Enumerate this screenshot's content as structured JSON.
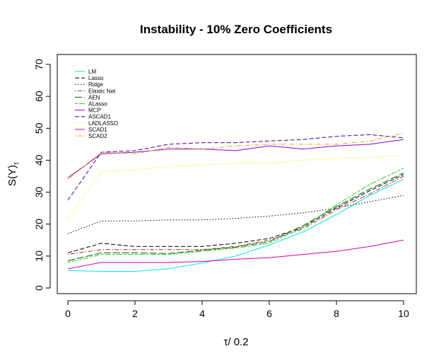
{
  "chart_data": {
    "type": "line",
    "title": "Instability - 10% Zero Coefficients",
    "xlabel": "τ/ 0.2",
    "ylabel_main": "S(Y)",
    "ylabel_sub": "τ",
    "xlim": [
      0,
      10
    ],
    "ylim": [
      0,
      70
    ],
    "xticks": [
      0,
      2,
      4,
      6,
      8,
      10
    ],
    "yticks": [
      0,
      10,
      20,
      30,
      40,
      50,
      60,
      70
    ],
    "legend_position": "top-left",
    "x": [
      0,
      1,
      2,
      3,
      4,
      5,
      6,
      7,
      8,
      9,
      10
    ],
    "series": [
      {
        "name": "LM",
        "color": "#00e5ee",
        "dash": "solid",
        "values": [
          5.5,
          5.2,
          5.2,
          6.0,
          7.8,
          10.0,
          13.5,
          17.5,
          23.0,
          29.0,
          34.0
        ]
      },
      {
        "name": "Lasso",
        "color": "#000000",
        "dash": "dashed",
        "values": [
          11.0,
          14.0,
          13.0,
          13.0,
          13.0,
          14.0,
          15.5,
          19.0,
          25.0,
          30.5,
          35.5
        ]
      },
      {
        "name": "Ridge",
        "color": "#000000",
        "dash": "dotted",
        "values": [
          17.0,
          21.0,
          21.0,
          21.3,
          21.3,
          21.8,
          22.5,
          23.5,
          25.0,
          27.0,
          29.0
        ]
      },
      {
        "name": "Elastic Net",
        "color": "#b22222",
        "dash": "dotdash",
        "values": [
          10.5,
          12.0,
          12.0,
          12.0,
          12.0,
          13.0,
          15.0,
          18.5,
          24.5,
          29.5,
          35.0
        ]
      },
      {
        "name": "AEN",
        "color": "#006400",
        "dash": "longdash",
        "values": [
          8.5,
          11.0,
          11.0,
          10.8,
          11.8,
          12.8,
          14.5,
          19.5,
          25.5,
          31.0,
          36.0
        ]
      },
      {
        "name": "ALasso",
        "color": "#32cd32",
        "dash": "twodash",
        "values": [
          8.0,
          10.5,
          10.5,
          10.5,
          11.5,
          12.5,
          14.0,
          19.0,
          26.0,
          32.5,
          37.5
        ]
      },
      {
        "name": "MCP",
        "color": "#9400d3",
        "dash": "solid",
        "values": [
          34.5,
          42.0,
          42.5,
          43.5,
          43.5,
          43.0,
          44.5,
          43.5,
          44.5,
          45.0,
          46.5
        ]
      },
      {
        "name": "ASCAD1",
        "color": "#4b0082",
        "dash": "dashed",
        "values": [
          27.5,
          42.5,
          43.0,
          45.0,
          45.5,
          45.5,
          46.0,
          46.5,
          47.5,
          48.0,
          47.0
        ]
      },
      {
        "name": "LADLASSO",
        "color": "#ffec00",
        "dash": "dotted",
        "values": [
          21.5,
          36.5,
          37.0,
          38.0,
          38.5,
          39.0,
          39.0,
          40.0,
          40.5,
          41.0,
          41.5
        ]
      },
      {
        "name": "SCAD1",
        "color": "#d400aa",
        "dash": "solid",
        "values": [
          6.0,
          8.0,
          8.0,
          8.0,
          8.3,
          9.0,
          9.5,
          10.5,
          11.5,
          13.0,
          15.0
        ]
      },
      {
        "name": "SCAD2",
        "color": "#daa520",
        "dash": "dotdash",
        "values": [
          34.0,
          42.5,
          42.0,
          44.0,
          43.5,
          44.5,
          45.0,
          45.0,
          45.0,
          46.0,
          48.5
        ]
      }
    ]
  }
}
